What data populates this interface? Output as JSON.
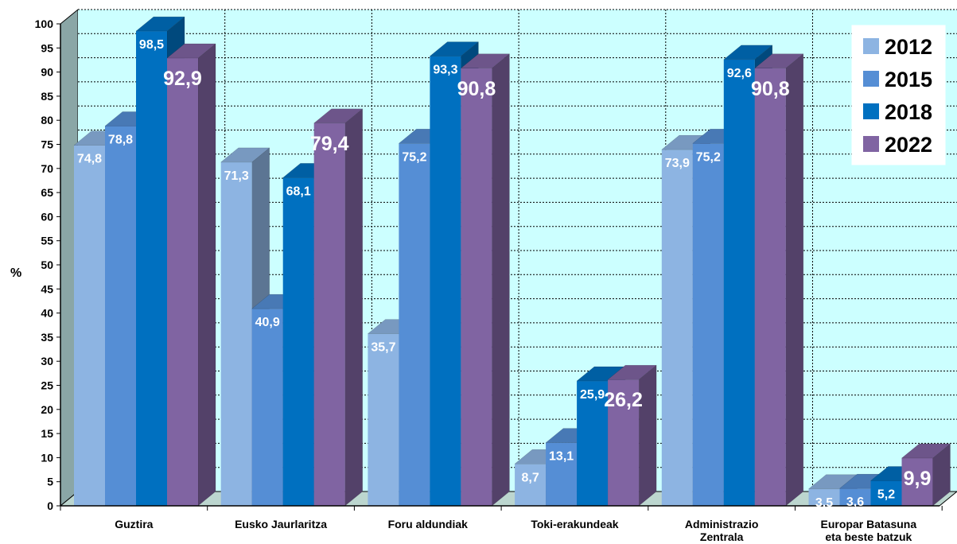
{
  "chart_data": {
    "type": "bar",
    "title": "",
    "xlabel": "",
    "ylabel": "%",
    "ylim": [
      0,
      100
    ],
    "yticks": [
      0,
      5,
      10,
      15,
      20,
      25,
      30,
      35,
      40,
      45,
      50,
      55,
      60,
      65,
      70,
      75,
      80,
      85,
      90,
      95,
      100
    ],
    "grid": true,
    "legend_position": "top-right",
    "categories": [
      [
        "Guztira"
      ],
      [
        "Eusko Jaurlaritza"
      ],
      [
        "Foru aldundiak"
      ],
      [
        "Toki-erakundeak"
      ],
      [
        "Administrazio",
        "Zentrala"
      ],
      [
        "Europar Batasuna",
        "eta beste batzuk"
      ]
    ],
    "series": [
      {
        "name": "2012",
        "color": "#8db4e2",
        "values": [
          74.8,
          71.3,
          35.7,
          8.7,
          73.9,
          3.5
        ],
        "labels": [
          "74,8",
          "71,3",
          "35,7",
          "8,7",
          "73,9",
          "3,5"
        ]
      },
      {
        "name": "2015",
        "color": "#558ed5",
        "values": [
          78.8,
          40.9,
          75.2,
          13.1,
          75.2,
          3.6
        ],
        "labels": [
          "78,8",
          "40,9",
          "75,2",
          "13,1",
          "75,2",
          "3,6"
        ]
      },
      {
        "name": "2018",
        "color": "#0070c0",
        "values": [
          98.5,
          68.1,
          93.3,
          25.9,
          92.6,
          5.2
        ],
        "labels": [
          "98,5",
          "68,1",
          "93,3",
          "25,9",
          "92,6",
          "5,2"
        ]
      },
      {
        "name": "2022",
        "color": "#8064a2",
        "values": [
          92.9,
          79.4,
          90.8,
          26.2,
          90.8,
          9.9
        ],
        "labels": [
          "92,9",
          "79,4",
          "90,8",
          "26,2",
          "90,8",
          "9,9"
        ]
      }
    ]
  }
}
